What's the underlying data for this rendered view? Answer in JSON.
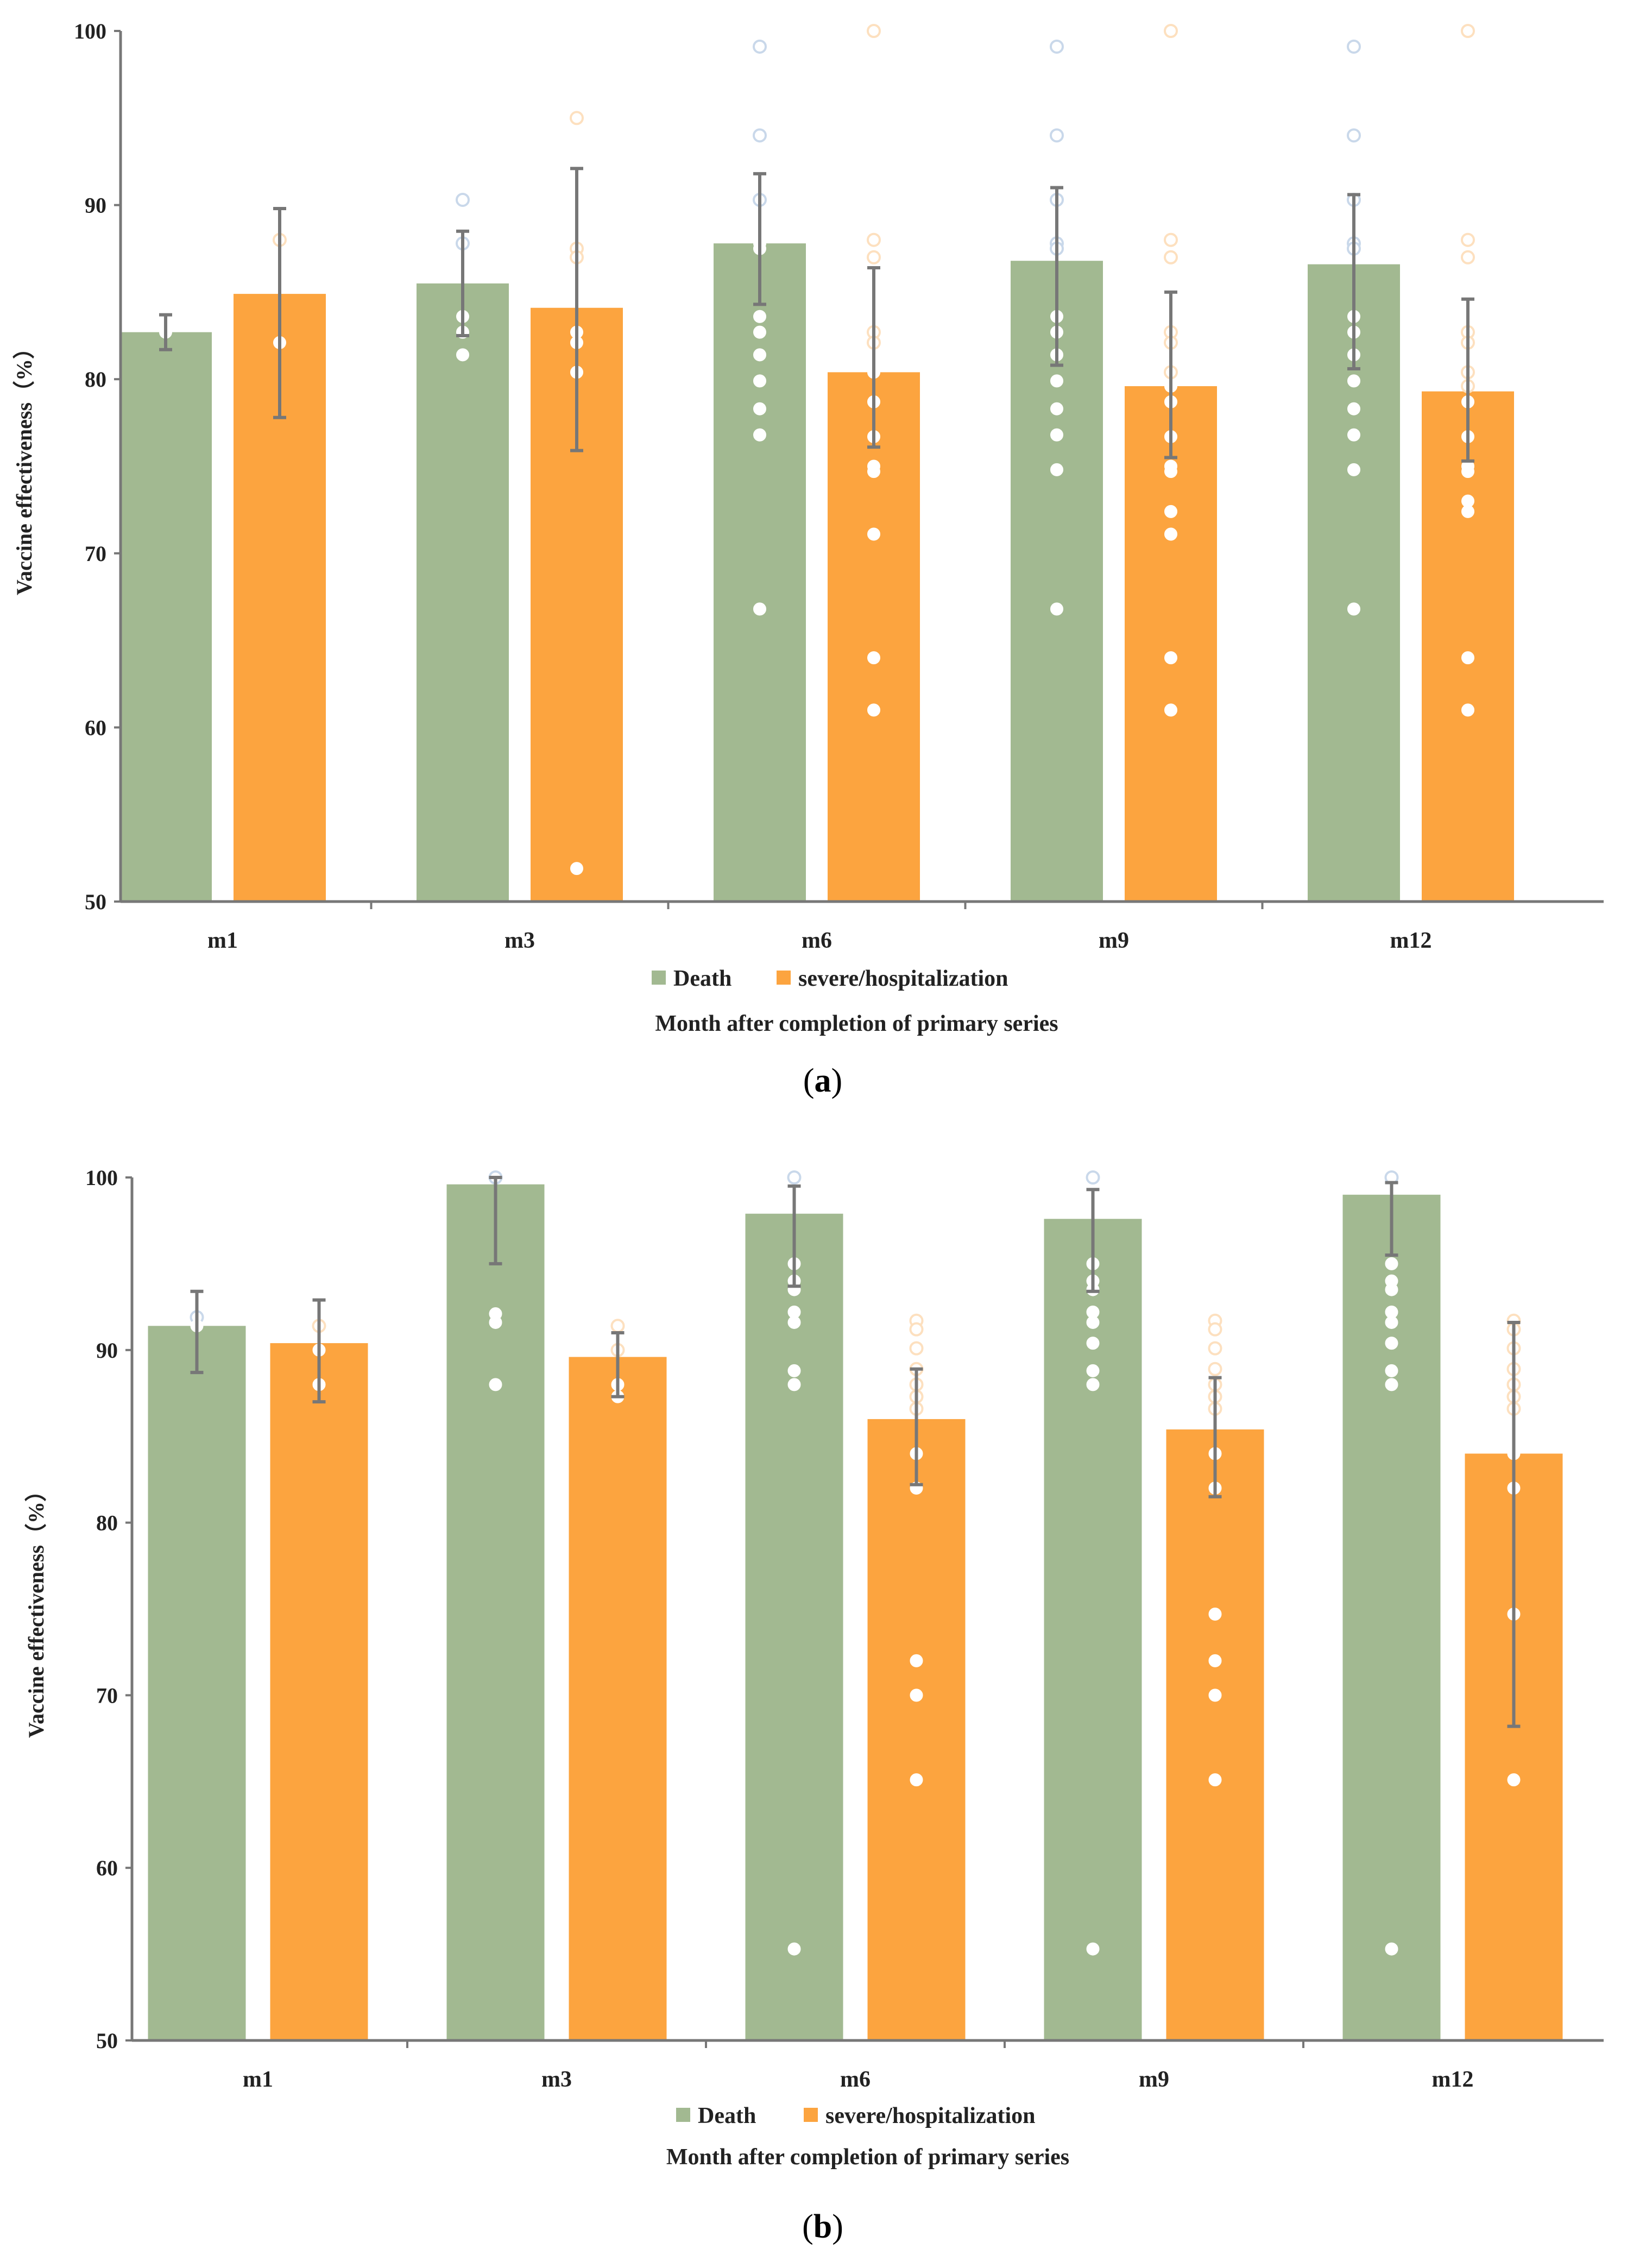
{
  "colors": {
    "death": "#a2b991",
    "severe": "#fca43f",
    "axis": "#777777",
    "error": "#777777",
    "point_death": "#c9d8ea",
    "point_severe": "#fde0bf"
  },
  "chart_data": [
    {
      "id": "a",
      "type": "bar",
      "panel_label_open": "(",
      "panel_label": "a",
      "panel_label_close": ")",
      "ylabel": "Vaccine effectiveness（%）",
      "xlabel": "Month after completion of primary series",
      "ylim": [
        50,
        100
      ],
      "yticks": [
        50,
        60,
        70,
        80,
        90,
        100
      ],
      "categories": [
        "m1",
        "m3",
        "m6",
        "m9",
        "m12"
      ],
      "series": [
        {
          "name": "Death",
          "values": [
            82.7,
            85.5,
            87.8,
            86.8,
            86.6
          ],
          "err_low": [
            1.0,
            3.0,
            3.5,
            6.0,
            6.0
          ],
          "err_high": [
            1.0,
            3.0,
            4.0,
            4.2,
            4.0
          ],
          "points": [
            [
              82.7
            ],
            [
              90.3,
              87.8,
              83.6,
              82.7,
              81.4
            ],
            [
              99.1,
              94.0,
              90.3,
              87.8,
              87.5,
              83.6,
              82.7,
              81.4,
              79.9,
              78.3,
              76.8,
              66.8
            ],
            [
              99.1,
              94.0,
              90.3,
              87.8,
              87.5,
              83.6,
              82.7,
              81.4,
              79.9,
              78.3,
              76.8,
              74.8,
              66.8
            ],
            [
              99.1,
              94.0,
              90.3,
              87.8,
              87.5,
              83.6,
              82.7,
              81.4,
              79.9,
              78.3,
              76.8,
              74.8,
              66.8
            ]
          ]
        },
        {
          "name": "severe/hospitalization",
          "values": [
            84.9,
            84.1,
            80.4,
            79.6,
            79.3
          ],
          "err_low": [
            7.1,
            8.2,
            4.3,
            4.1,
            4.0
          ],
          "err_high": [
            4.9,
            8.0,
            6.0,
            5.4,
            5.3
          ],
          "points": [
            [
              88.0,
              82.1
            ],
            [
              95.0,
              87.5,
              87.0,
              82.7,
              82.1,
              80.4,
              51.9
            ],
            [
              100,
              88.0,
              87.0,
              82.7,
              82.1,
              80.4,
              78.7,
              76.7,
              75.0,
              74.7,
              71.1,
              64.0,
              61.0
            ],
            [
              100,
              88.0,
              87.0,
              82.7,
              82.1,
              80.4,
              79.6,
              78.7,
              76.7,
              75.0,
              74.7,
              72.4,
              71.1,
              64.0,
              61.0
            ],
            [
              100,
              88.0,
              87.0,
              82.7,
              82.1,
              80.4,
              79.6,
              78.7,
              76.7,
              75.0,
              74.7,
              73.0,
              72.4,
              64.0,
              61.0
            ]
          ]
        }
      ]
    },
    {
      "id": "b",
      "type": "bar",
      "panel_label_open": "(",
      "panel_label": "b",
      "panel_label_close": ")",
      "ylabel": "Vaccine effectiveness（%）",
      "xlabel": "Month after completion of primary series",
      "ylim": [
        50,
        100
      ],
      "yticks": [
        50,
        60,
        70,
        80,
        90,
        100
      ],
      "categories": [
        "m1",
        "m3",
        "m6",
        "m9",
        "m12"
      ],
      "series": [
        {
          "name": "Death",
          "values": [
            91.4,
            99.6,
            97.9,
            97.6,
            99.0
          ],
          "err_low": [
            2.7,
            4.6,
            4.2,
            4.2,
            3.5
          ],
          "err_high": [
            2.0,
            0.4,
            1.6,
            1.7,
            0.7
          ],
          "points": [
            [
              91.9,
              91.4
            ],
            [
              100,
              92.1,
              91.6,
              88.0
            ],
            [
              100,
              95.0,
              94.0,
              93.5,
              92.2,
              91.6,
              88.8,
              88.0,
              55.3
            ],
            [
              100,
              95.0,
              94.0,
              93.5,
              92.2,
              91.6,
              90.4,
              88.8,
              88.0,
              55.3
            ],
            [
              100,
              95.0,
              94.0,
              93.5,
              92.2,
              91.6,
              90.4,
              88.8,
              88.0,
              55.3
            ]
          ]
        },
        {
          "name": "severe/hospitalization",
          "values": [
            90.4,
            89.6,
            86.0,
            85.4,
            84.0
          ],
          "err_low": [
            3.4,
            2.3,
            3.8,
            3.9,
            15.8
          ],
          "err_high": [
            2.5,
            1.4,
            2.9,
            3.0,
            7.6
          ],
          "points": [
            [
              91.4,
              90.0,
              88.0
            ],
            [
              91.4,
              90.0,
              88.0,
              87.3
            ],
            [
              91.7,
              91.2,
              90.1,
              88.9,
              88.0,
              87.3,
              86.6,
              84.0,
              82.0,
              72.0,
              70.0,
              65.1
            ],
            [
              91.7,
              91.2,
              90.1,
              88.9,
              88.0,
              87.3,
              86.6,
              84.0,
              82.0,
              74.7,
              72.0,
              70.0,
              65.1
            ],
            [
              91.7,
              91.2,
              90.1,
              88.9,
              88.0,
              87.3,
              86.6,
              84.0,
              82.0,
              74.7,
              65.1
            ]
          ]
        }
      ]
    }
  ]
}
